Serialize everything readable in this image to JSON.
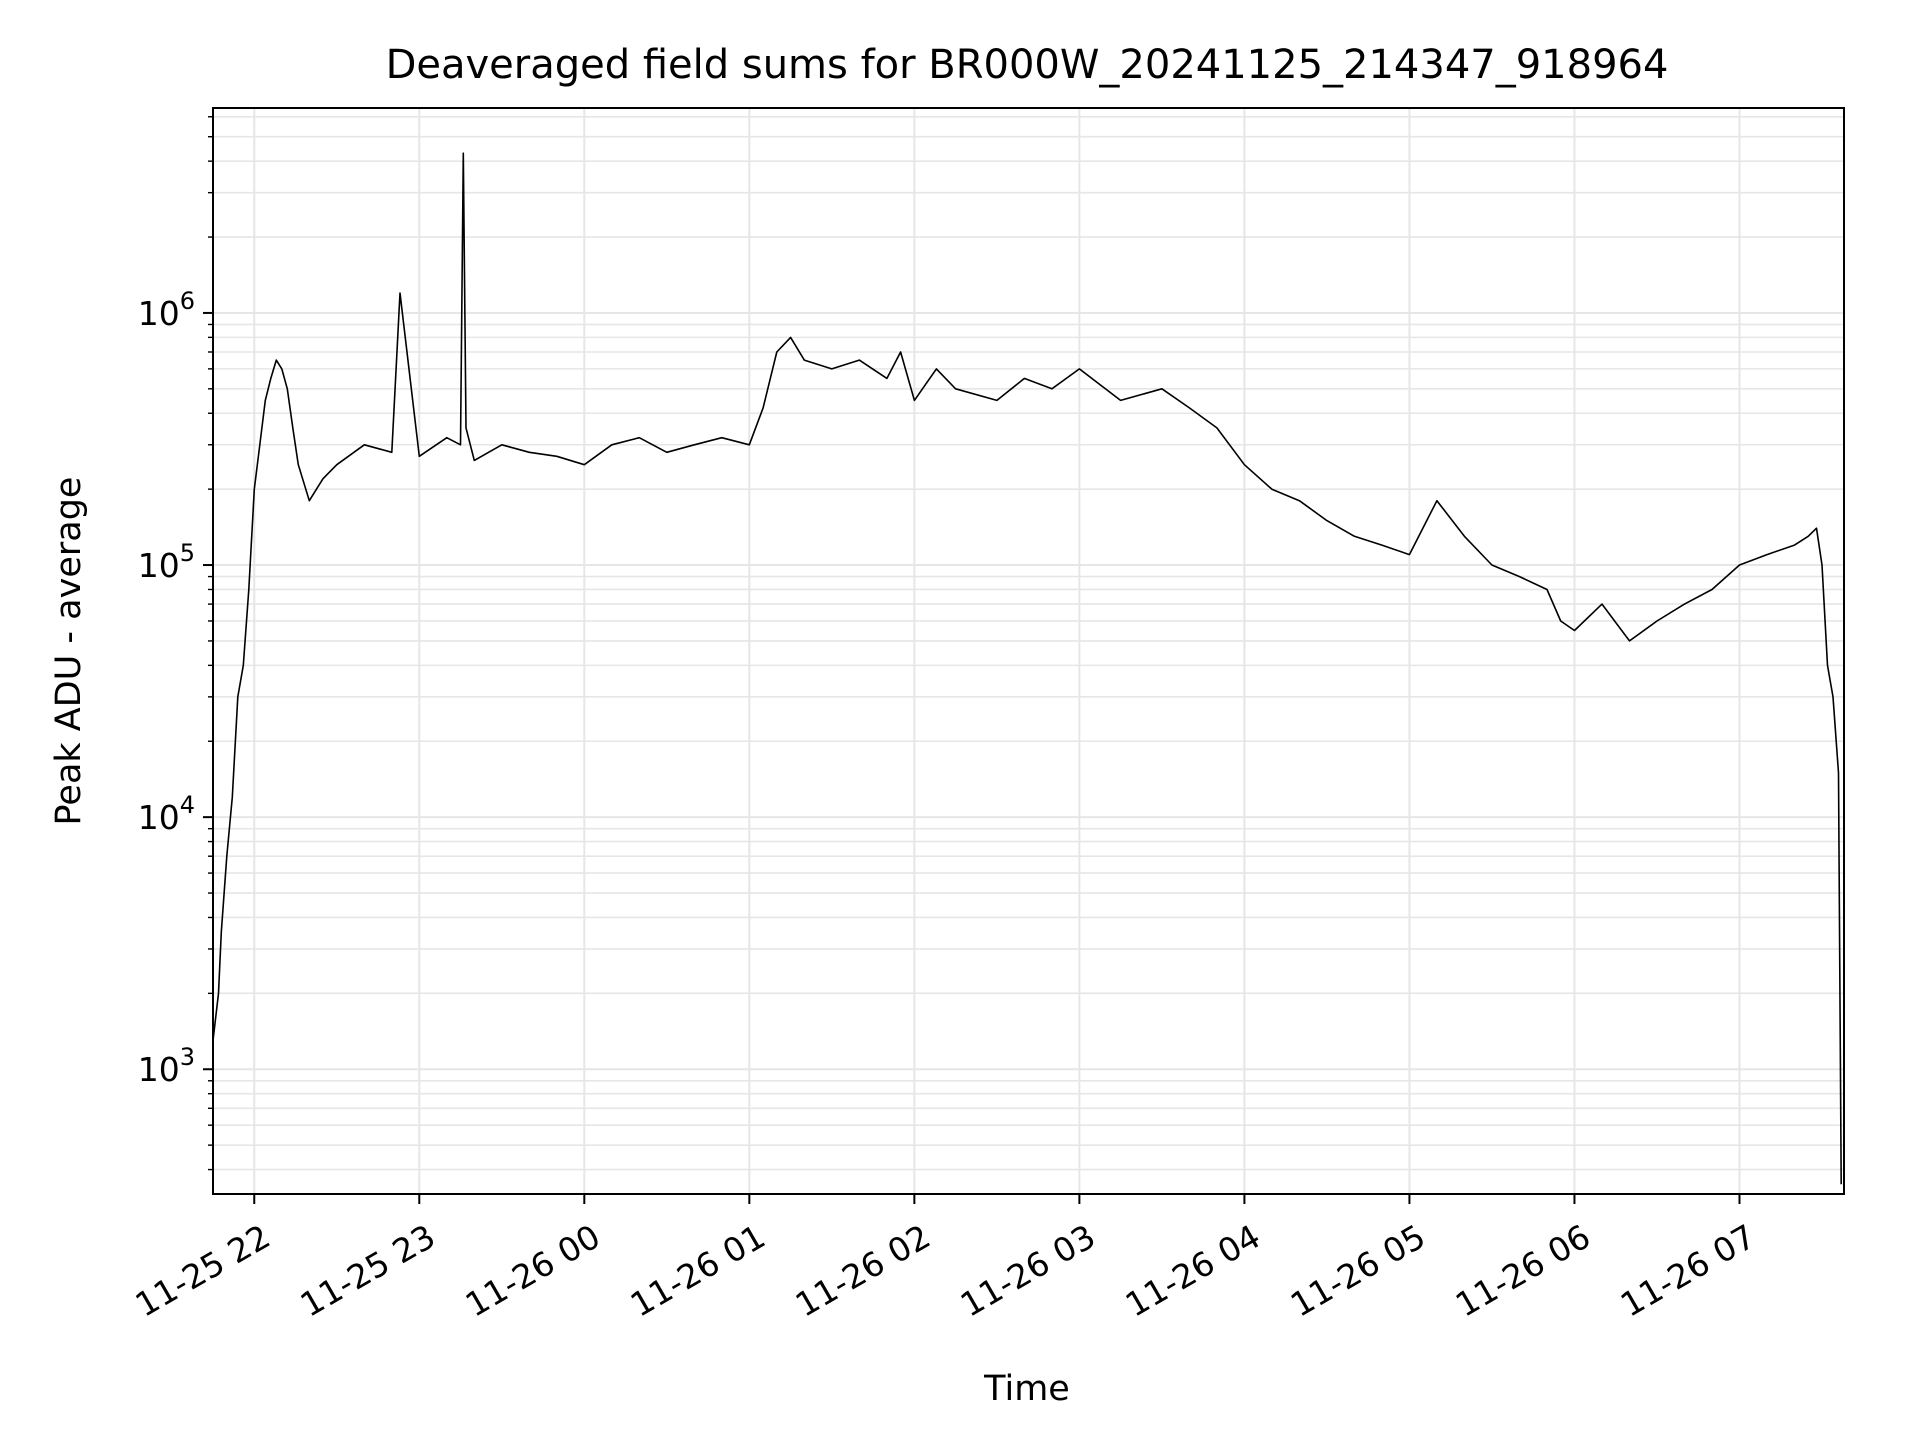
{
  "chart_data": {
    "type": "line",
    "title": "Deaveraged field sums for BR000W_20241125_214347_918964",
    "xlabel": "Time",
    "ylabel": "Peak ADU - average",
    "yscale": "log",
    "ylim": [
      320,
      6500000
    ],
    "xlim": [
      "2024-11-25 21:45",
      "2024-11-26 07:38"
    ],
    "grid": true,
    "line_color": "#000000",
    "grid_color": "#e6e6e6",
    "x_ticks": [
      {
        "value": "2024-11-25 22:00",
        "label": "11-25 22"
      },
      {
        "value": "2024-11-25 23:00",
        "label": "11-25 23"
      },
      {
        "value": "2024-11-26 00:00",
        "label": "11-26 00"
      },
      {
        "value": "2024-11-26 01:00",
        "label": "11-26 01"
      },
      {
        "value": "2024-11-26 02:00",
        "label": "11-26 02"
      },
      {
        "value": "2024-11-26 03:00",
        "label": "11-26 03"
      },
      {
        "value": "2024-11-26 04:00",
        "label": "11-26 04"
      },
      {
        "value": "2024-11-26 05:00",
        "label": "11-26 05"
      },
      {
        "value": "2024-11-26 06:00",
        "label": "11-26 06"
      },
      {
        "value": "2024-11-26 07:00",
        "label": "11-26 07"
      }
    ],
    "y_ticks": [
      {
        "value": 1000,
        "base": "10",
        "exp": "3"
      },
      {
        "value": 10000,
        "base": "10",
        "exp": "4"
      },
      {
        "value": 100000,
        "base": "10",
        "exp": "5"
      },
      {
        "value": 1000000,
        "base": "10",
        "exp": "6"
      }
    ],
    "series": [
      {
        "x": [
          "2024-11-25 21:45",
          "2024-11-25 21:47",
          "2024-11-25 21:48",
          "2024-11-25 21:50",
          "2024-11-25 21:52",
          "2024-11-25 21:54",
          "2024-11-25 21:56",
          "2024-11-25 21:58",
          "2024-11-25 22:00",
          "2024-11-25 22:02",
          "2024-11-25 22:04",
          "2024-11-25 22:06",
          "2024-11-25 22:08",
          "2024-11-25 22:10",
          "2024-11-25 22:12",
          "2024-11-25 22:14",
          "2024-11-25 22:16",
          "2024-11-25 22:20",
          "2024-11-25 22:25",
          "2024-11-25 22:30",
          "2024-11-25 22:40",
          "2024-11-25 22:50",
          "2024-11-25 22:53",
          "2024-11-25 23:00",
          "2024-11-25 23:10",
          "2024-11-25 23:15",
          "2024-11-25 23:16",
          "2024-11-25 23:17",
          "2024-11-25 23:20",
          "2024-11-25 23:30",
          "2024-11-25 23:40",
          "2024-11-25 23:50",
          "2024-11-26 00:00",
          "2024-11-26 00:10",
          "2024-11-26 00:20",
          "2024-11-26 00:30",
          "2024-11-26 00:40",
          "2024-11-26 00:50",
          "2024-11-26 01:00",
          "2024-11-26 01:05",
          "2024-11-26 01:10",
          "2024-11-26 01:15",
          "2024-11-26 01:20",
          "2024-11-26 01:30",
          "2024-11-26 01:40",
          "2024-11-26 01:50",
          "2024-11-26 01:55",
          "2024-11-26 02:00",
          "2024-11-26 02:08",
          "2024-11-26 02:15",
          "2024-11-26 02:30",
          "2024-11-26 02:40",
          "2024-11-26 02:50",
          "2024-11-26 03:00",
          "2024-11-26 03:15",
          "2024-11-26 03:30",
          "2024-11-26 03:40",
          "2024-11-26 03:50",
          "2024-11-26 04:00",
          "2024-11-26 04:10",
          "2024-11-26 04:20",
          "2024-11-26 04:30",
          "2024-11-26 04:40",
          "2024-11-26 04:50",
          "2024-11-26 05:00",
          "2024-11-26 05:10",
          "2024-11-26 05:20",
          "2024-11-26 05:30",
          "2024-11-26 05:40",
          "2024-11-26 05:50",
          "2024-11-26 05:55",
          "2024-11-26 06:00",
          "2024-11-26 06:10",
          "2024-11-26 06:20",
          "2024-11-26 06:30",
          "2024-11-26 06:40",
          "2024-11-26 06:50",
          "2024-11-26 07:00",
          "2024-11-26 07:10",
          "2024-11-26 07:20",
          "2024-11-26 07:25",
          "2024-11-26 07:28",
          "2024-11-26 07:30",
          "2024-11-26 07:32",
          "2024-11-26 07:34",
          "2024-11-26 07:36",
          "2024-11-26 07:37"
        ],
        "y": [
          1300,
          2000,
          3500,
          7000,
          12000,
          30000,
          40000,
          80000,
          200000,
          300000,
          450000,
          550000,
          650000,
          600000,
          500000,
          350000,
          250000,
          180000,
          220000,
          250000,
          300000,
          280000,
          1200000,
          270000,
          320000,
          300000,
          4300000,
          350000,
          260000,
          300000,
          280000,
          270000,
          250000,
          300000,
          320000,
          280000,
          300000,
          320000,
          300000,
          420000,
          700000,
          800000,
          650000,
          600000,
          650000,
          550000,
          700000,
          450000,
          600000,
          500000,
          450000,
          550000,
          500000,
          600000,
          450000,
          500000,
          420000,
          350000,
          250000,
          200000,
          180000,
          150000,
          130000,
          120000,
          110000,
          180000,
          130000,
          100000,
          90000,
          80000,
          60000,
          55000,
          70000,
          50000,
          60000,
          70000,
          80000,
          100000,
          110000,
          120000,
          130000,
          140000,
          100000,
          40000,
          30000,
          15000,
          350
        ]
      }
    ]
  }
}
